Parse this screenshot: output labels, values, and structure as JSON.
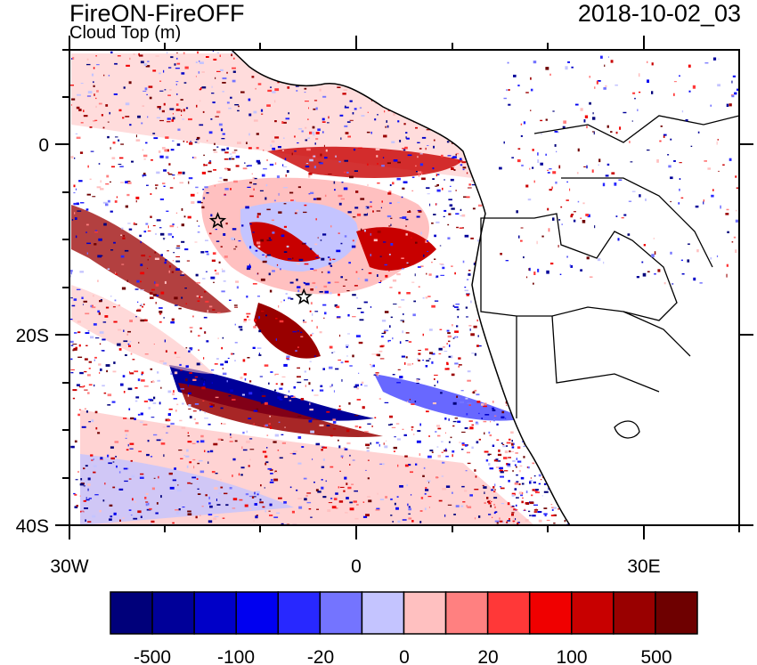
{
  "header": {
    "title_left": "FireON-FireOFF",
    "subtitle_left": "Cloud Top (m)",
    "title_right": "2018-10-02_03"
  },
  "map": {
    "lon_range": [
      -30,
      40
    ],
    "lat_range": [
      -40,
      10
    ],
    "y_tick_labels": [
      "0",
      "20S",
      "40S"
    ],
    "x_tick_labels": [
      "30W",
      "0",
      "30E"
    ],
    "markers": [
      {
        "name": "star",
        "lon": -14.5,
        "lat": -8
      },
      {
        "name": "star",
        "lon": -5.5,
        "lat": -16
      }
    ]
  },
  "colorbar": {
    "colors": [
      "#00007a",
      "#000099",
      "#0000c8",
      "#0000f0",
      "#2828ff",
      "#7474ff",
      "#c4c4ff",
      "#ffc0c0",
      "#ff8080",
      "#ff3838",
      "#f00000",
      "#c80000",
      "#990000",
      "#6e0000"
    ],
    "labels": [
      "-500",
      "-100",
      "-20",
      "0",
      "20",
      "100",
      "500"
    ]
  }
}
